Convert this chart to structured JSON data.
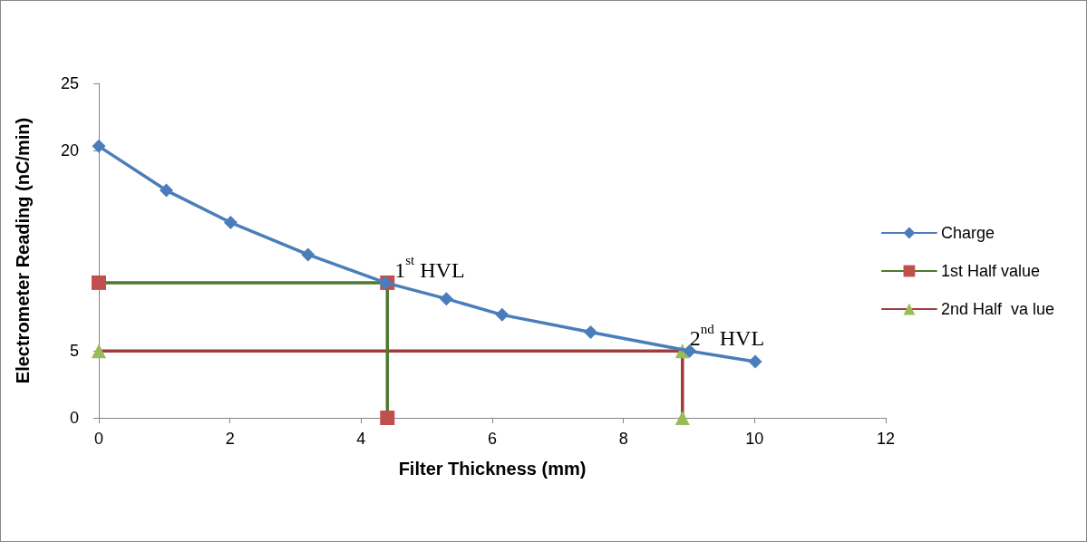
{
  "chart_data": {
    "type": "line",
    "xlabel": "Filter Thickness (mm)",
    "ylabel": "Electrometer Reading (nC/min)",
    "xlim": [
      0,
      12
    ],
    "xticks": [
      0,
      2,
      4,
      6,
      8,
      10,
      12
    ],
    "ylim": [
      0,
      25
    ],
    "yticks": [
      0,
      5,
      20,
      25
    ],
    "grid": false,
    "legend": "right",
    "line_style": "solid",
    "series": [
      {
        "name": "Charge",
        "color": "#4a7ebb",
        "marker": "diamond",
        "x": [
          0,
          1.03,
          2.01,
          3.19,
          4.37,
          5.3,
          6.15,
          7.5,
          9.01,
          10.01
        ],
        "values": [
          20.3,
          17.0,
          14.6,
          12.2,
          10.1,
          8.9,
          7.7,
          6.4,
          5.0,
          4.2
        ]
      },
      {
        "name": "1st Half value",
        "color": "#4e7a2e",
        "colors": [
          "#c0504d",
          "#c0504d",
          "#c0504d"
        ],
        "marker": "square",
        "x": [
          0,
          4.4,
          4.4
        ],
        "values": [
          10.1,
          10.1,
          0
        ]
      },
      {
        "name": "2nd Half  va lue",
        "color": "#a03c3a",
        "colors": [
          "#9bbb59",
          "#9bbb59",
          "#9bbb59"
        ],
        "marker": "triangle",
        "x": [
          0,
          8.9,
          8.9
        ],
        "values": [
          5,
          5,
          0
        ]
      }
    ],
    "annotations": [
      {
        "text": "1$^{st}$ HVL",
        "x": 4.4,
        "y": 10.1
      },
      {
        "text": "2$^{nd}$ HVL",
        "x": 8.9,
        "y": 5
      }
    ]
  }
}
